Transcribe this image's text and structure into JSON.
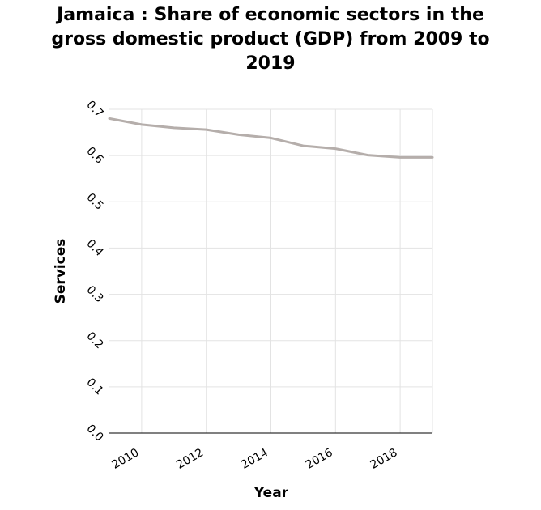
{
  "chart_data": {
    "type": "line",
    "title_lines": [
      "Jamaica : Share of economic sectors in the",
      "gross domestic product (GDP) from 2009 to",
      "2019"
    ],
    "xlabel": "Year",
    "ylabel": "Services",
    "x": [
      2009,
      2010,
      2011,
      2012,
      2013,
      2014,
      2015,
      2016,
      2017,
      2018,
      2019
    ],
    "series": [
      {
        "values": [
          0.68,
          0.667,
          0.66,
          0.656,
          0.645,
          0.638,
          0.621,
          0.615,
          0.601,
          0.596,
          0.596
        ]
      }
    ],
    "xlim": [
      2009,
      2019
    ],
    "ylim": [
      0.0,
      0.7
    ],
    "xticks": [
      2010,
      2012,
      2014,
      2016,
      2018
    ],
    "xtick_labels": [
      "2010",
      "2012",
      "2014",
      "2016",
      "2018"
    ],
    "yticks": [
      0.0,
      0.1,
      0.2,
      0.3,
      0.4,
      0.5,
      0.6,
      0.7
    ],
    "ytick_labels": [
      "0.0",
      "0.1",
      "0.2",
      "0.3",
      "0.4",
      "0.5",
      "0.6",
      "0.7"
    ],
    "grid": true,
    "line_color": "#b5aeab",
    "grid_color": "#e3e3e3"
  }
}
